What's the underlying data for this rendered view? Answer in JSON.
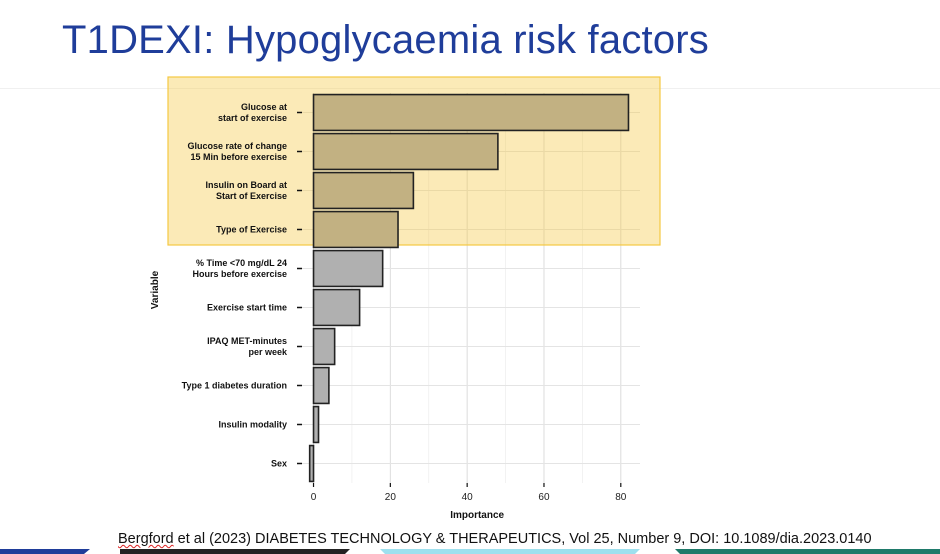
{
  "slide": {
    "title": "T1DEXI: Hypoglycaemia risk factors",
    "citation_author": "Bergford",
    "citation_rest": " et al (2023) DIABETES TECHNOLOGY & THERAPEUTICS, Vol 25, Number 9, DOI: 10.1089/dia.2023.0140"
  },
  "colors": {
    "title": "#1f3d9a",
    "highlight_box": "#f5c842",
    "bar_highlight": "#c2b182",
    "bar_grey": "#b0b0b0",
    "bar_stroke": "#222222"
  },
  "chart_data": {
    "type": "bar",
    "orientation": "horizontal",
    "xlabel": "Importance",
    "ylabel": "Variable",
    "xlim": [
      -3,
      85
    ],
    "xticks": [
      0,
      20,
      40,
      60,
      80
    ],
    "grid": true,
    "categories": [
      [
        "Glucose at",
        "start of exercise"
      ],
      [
        "Glucose rate of change",
        "15 Min before exercise"
      ],
      [
        "Insulin on Board at",
        "Start of Exercise"
      ],
      [
        "Type of Exercise"
      ],
      [
        "% Time <70 mg/dL 24",
        "Hours before exercise"
      ],
      [
        "Exercise start time"
      ],
      [
        "IPAQ MET-minutes",
        "per week"
      ],
      [
        "Type 1 diabetes duration"
      ],
      [
        "Insulin modality"
      ],
      [
        "Sex"
      ]
    ],
    "values": [
      82,
      48,
      26,
      22,
      18,
      12,
      5.5,
      4,
      1.3,
      -1
    ],
    "highlighted_count": 4
  }
}
